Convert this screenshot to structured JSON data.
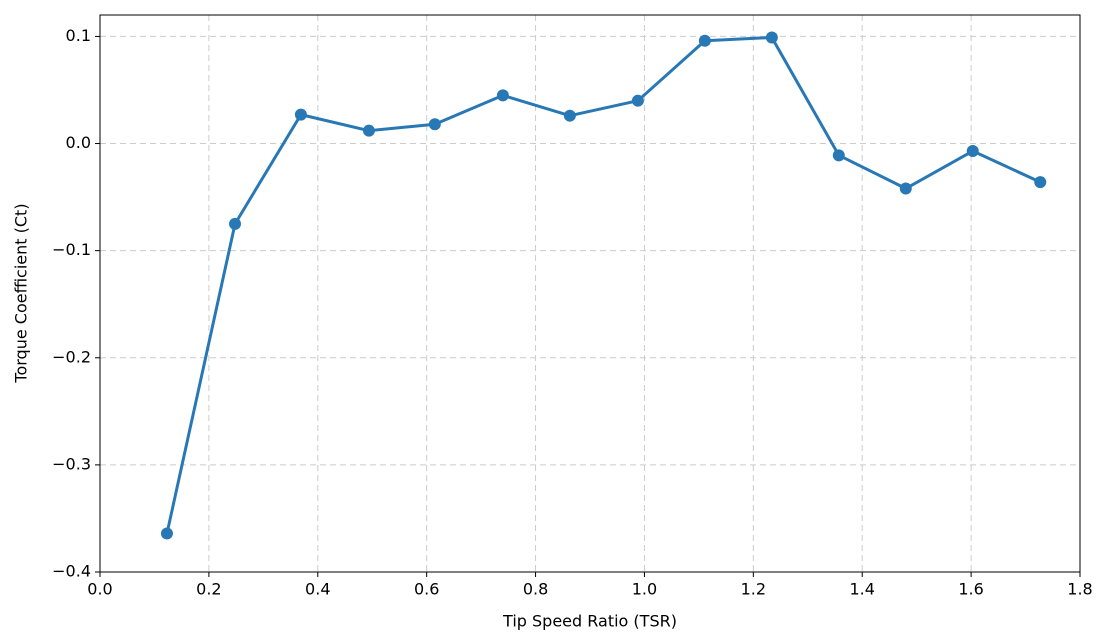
{
  "chart_data": {
    "type": "line",
    "xlabel": "Tip Speed Ratio (TSR)",
    "ylabel": "Torque Coefficient (Ct)",
    "x": [
      0.123,
      0.248,
      0.369,
      0.494,
      0.615,
      0.74,
      0.863,
      0.988,
      1.111,
      1.234,
      1.357,
      1.48,
      1.603,
      1.727
    ],
    "series": [
      {
        "color": "#2878b5",
        "values": [
          -0.364,
          -0.075,
          0.027,
          0.012,
          0.018,
          0.045,
          0.026,
          0.04,
          0.096,
          0.099,
          -0.011,
          -0.042,
          -0.007,
          -0.036
        ]
      }
    ],
    "xlim": [
      0,
      1.8
    ],
    "ylim": [
      -0.4,
      0.12
    ],
    "xticks": [
      {
        "value": 0,
        "label": "0.0"
      },
      0.2,
      0.4,
      0.6,
      0.8,
      {
        "value": 1,
        "label": "1.0"
      },
      1.2,
      1.4,
      1.6,
      1.8
    ],
    "yticks": [
      {
        "value": -0.4,
        "label": "−0.4"
      },
      {
        "value": -0.3,
        "label": "−0.3"
      },
      {
        "value": -0.2,
        "label": "−0.2"
      },
      {
        "value": -0.1,
        "label": "−0.1"
      },
      {
        "value": 0,
        "label": "0.0"
      },
      0.1
    ],
    "grid": true
  }
}
